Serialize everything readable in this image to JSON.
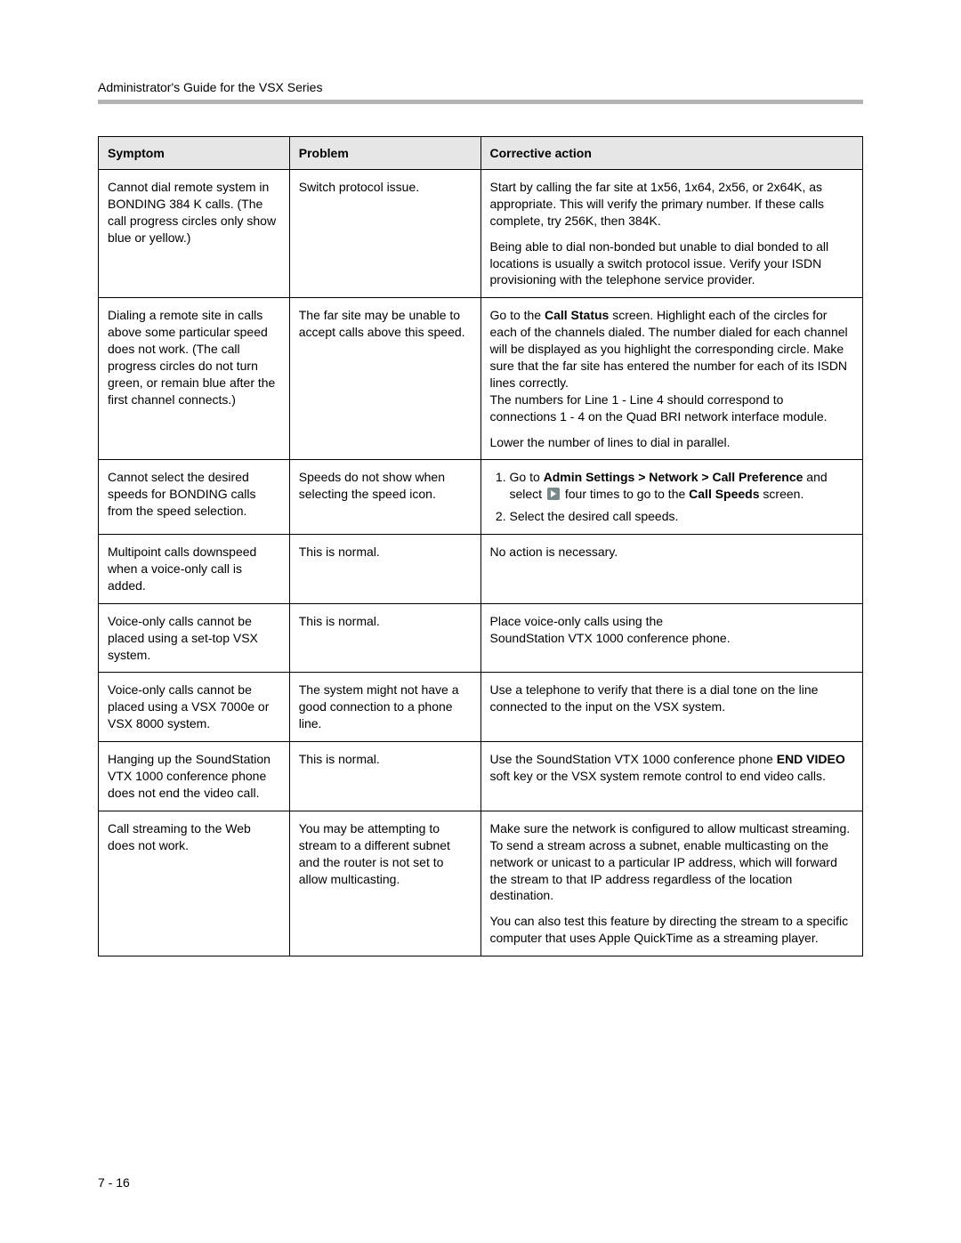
{
  "header": {
    "running_title": "Administrator's Guide for the VSX Series"
  },
  "table": {
    "columns": [
      "Symptom",
      "Problem",
      "Corrective action"
    ],
    "col_widths_pct": [
      25,
      25,
      50
    ],
    "header_bg": "#e6e6e6",
    "border_color": "#000000",
    "font_size_pt": 11,
    "rows": [
      {
        "symptom": "Cannot dial remote system in BONDING 384 K calls. (The call progress circles only show blue or yellow.)",
        "problem": "Switch protocol issue.",
        "action_p1": "Start by calling the far site at 1x56, 1x64, 2x56, or 2x64K, as appropriate. This will verify the primary number. If these calls complete, try 256K, then 384K.",
        "action_p2": "Being able to dial non-bonded but unable to dial bonded to all locations is usually a switch protocol issue. Verify your ISDN provisioning with the telephone service provider."
      },
      {
        "symptom": "Dialing a remote site in calls above some particular speed does not work. (The call progress circles do not turn green, or remain blue after the first channel connects.)",
        "problem": "The far site may be unable to accept calls above this speed.",
        "action_p1_a": "Go to the ",
        "action_p1_bold1": "Call Status",
        "action_p1_b": " screen. Highlight each of the circles for each of the channels dialed. The number dialed for each channel will be displayed as you highlight the corresponding circle. Make sure that the far site has entered the number for each of its ISDN lines correctly.",
        "action_p1_c": "The numbers for Line 1 - Line 4 should correspond to connections 1 - 4 on the Quad BRI network interface module.",
        "action_p2": "Lower the number of lines to dial in parallel."
      },
      {
        "symptom": "Cannot select the desired speeds for BONDING calls from the speed selection.",
        "problem": "Speeds do not show when selecting the speed icon.",
        "step1_a": "Go to ",
        "step1_bold1": "Admin Settings > Network > Call Preference",
        "step1_b": " and select ",
        "step1_c": " four times to go to the ",
        "step1_bold2": "Call Speeds",
        "step1_d": " screen.",
        "step2": "Select the desired call speeds."
      },
      {
        "symptom": "Multipoint calls downspeed when a voice-only call is added.",
        "problem": "This is normal.",
        "action": "No action is necessary."
      },
      {
        "symptom": "Voice-only calls cannot be placed using a set-top VSX system.",
        "problem": "This is normal.",
        "action_l1": "Place voice-only calls using the",
        "action_l2": "SoundStation VTX 1000 conference phone."
      },
      {
        "symptom": "Voice-only calls cannot be placed using a VSX 7000e or VSX 8000 system.",
        "problem": "The system might not have a good connection to a phone line.",
        "action": "Use a telephone to verify that there is a dial tone on the line connected to the input on the VSX system."
      },
      {
        "symptom": "Hanging up the SoundStation VTX 1000 conference phone does not end the video call.",
        "problem": "This is normal.",
        "action_a": "Use the SoundStation VTX 1000 conference phone ",
        "action_bold": "END VIDEO",
        "action_b": " soft key or the VSX system remote control to end video calls."
      },
      {
        "symptom": "Call streaming to the Web does not work.",
        "problem": "You may be attempting to stream to a different subnet and the router is not set to allow multicasting.",
        "action_p1": "Make sure the network is configured to allow multicast streaming. To send a stream across a subnet, enable multicasting on the network or unicast to a particular IP address, which will forward the stream to that IP address regardless of the location destination.",
        "action_p2": "You can also test this feature by directing the stream to a specific computer that uses Apple QuickTime as a streaming player."
      }
    ]
  },
  "footer": {
    "page_number": "7 - 16"
  },
  "colors": {
    "page_bg": "#ffffff",
    "text": "#000000",
    "header_rule": "#b3b3b3",
    "th_bg": "#e6e6e6",
    "border": "#000000",
    "icon_bg": "#7a8a8a",
    "icon_arrow": "#ffffff"
  },
  "typography": {
    "body_font": "Arial",
    "body_size_pt": 11,
    "header_size_pt": 11
  }
}
